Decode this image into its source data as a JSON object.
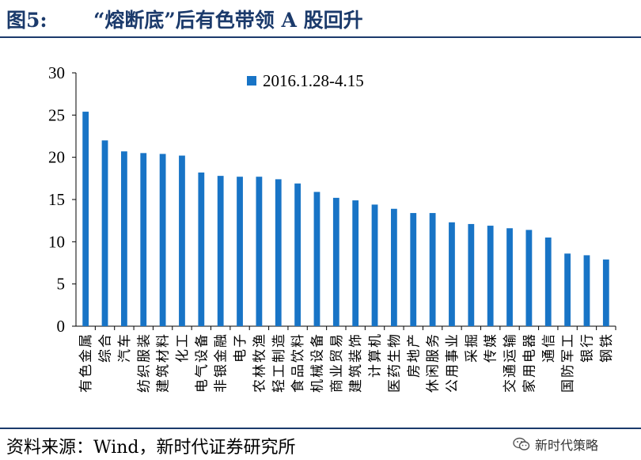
{
  "header": {
    "figure_label": "图5:",
    "title": "“熔断底”后有色带领 A 股回升"
  },
  "footer": {
    "source": "资料来源：Wind，新时代证券研究所",
    "watermark": "新时代策略",
    "watermark_icon": "wechat-icon"
  },
  "colors": {
    "bar": "#1874c6",
    "title": "#1b3a6b"
  },
  "chart_data": {
    "type": "bar",
    "categories": [
      "有色金属",
      "综合",
      "汽车",
      "纺织服装",
      "建筑材料",
      "化工",
      "电气设备",
      "非银金融",
      "电子",
      "农林牧渔",
      "轻工制造",
      "食品饮料",
      "机械设备",
      "商业贸易",
      "建筑装饰",
      "计算机",
      "医药生物",
      "房地产",
      "休闲服务",
      "公用事业",
      "采掘",
      "传媒",
      "交通运输",
      "家用电器",
      "通信",
      "国防军工",
      "银行",
      "钢铁"
    ],
    "series": [
      {
        "name": "2016.1.28-4.15",
        "values": [
          25.4,
          22.0,
          20.7,
          20.5,
          20.4,
          20.2,
          18.2,
          17.8,
          17.7,
          17.7,
          17.4,
          16.9,
          15.9,
          15.2,
          14.9,
          14.4,
          13.9,
          13.4,
          13.4,
          12.3,
          12.1,
          11.9,
          11.6,
          11.4,
          10.5,
          8.6,
          8.4,
          7.9
        ]
      }
    ],
    "y_ticks": [
      "0",
      "5",
      "10",
      "15",
      "20",
      "25",
      "30"
    ],
    "ylim": [
      0,
      30
    ],
    "grid": false,
    "legend_position": "top"
  }
}
